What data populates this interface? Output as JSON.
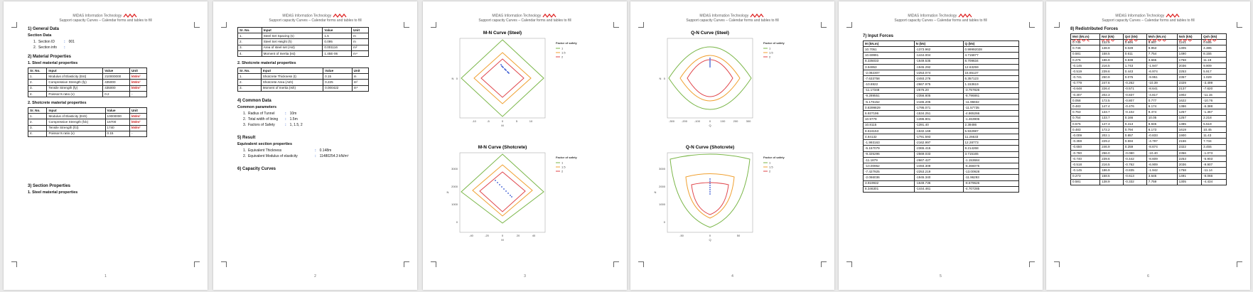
{
  "header": {
    "line1": "MIDAS Information Technology",
    "line2": "Support capacity Curves – Calendar forms and tables to fill"
  },
  "pages": [
    {
      "number": "1",
      "sections": {
        "general_title": "1) General Data",
        "section_data_title": "Section Data",
        "section_data": [
          {
            "label": "Section ID",
            "value": "001"
          },
          {
            "label": "Section info",
            "value": ""
          }
        ],
        "material_title": "2) Material Properties",
        "steel_title": "1. Steel material properties",
        "shotcrete_title": "2. Shotcrete material properties",
        "section_props_title": "3) Section Properties",
        "steel_section_title": "1. Steel material properties"
      },
      "columns": [
        "Sr. No.",
        "Input",
        "Value",
        "Unit"
      ],
      "steel_rows": [
        [
          "1.",
          "Modulus of Elasticity (Est)",
          "210000000",
          "kN/m²"
        ],
        [
          "2.",
          "Compressive Strength (fy)",
          "435000",
          "kN/m²"
        ],
        [
          "3.",
          "Tensile Strength (fy)",
          "435000",
          "kN/m²"
        ],
        [
          "4.",
          "Poisson's ratio (v)",
          "0.2",
          "-"
        ]
      ],
      "shotcrete_rows": [
        [
          "1.",
          "Modulus of Elasticity (Esh)",
          "10000000",
          "kN/m²"
        ],
        [
          "2.",
          "Compressive Strength (fck)",
          "16700",
          "kN/m²"
        ],
        [
          "3.",
          "Tensile Strength (fct)",
          "1740",
          "kN/m²"
        ],
        [
          "4.",
          "Poisson's ratio (v)",
          "0.15",
          "-"
        ]
      ]
    },
    {
      "number": "2",
      "columns": [
        "Sr. No.",
        "Input",
        "Value",
        "Unit"
      ],
      "steel_rows": [
        [
          "1.",
          "Steel Set Spacing (s)",
          "1.5",
          "m"
        ],
        [
          "2.",
          "Steel Set Height (h)",
          "0.095",
          "m"
        ],
        [
          "3.",
          "Area of steel set (Ast)",
          "0.001116",
          "m²"
        ],
        [
          "4.",
          "Moment of Inertia (Ist)",
          "1.45E-06",
          "m⁴"
        ]
      ],
      "shotcrete_title": "2. Shotcrete material properties",
      "shotcrete_rows": [
        [
          "1.",
          "Shotcrete Thickness (t)",
          "0.15",
          "m"
        ],
        [
          "2.",
          "Shotcrete Area (Ash)",
          "0.225",
          "m²"
        ],
        [
          "3.",
          "Moment of Inertia (Ish)",
          "0.000422",
          "m⁴"
        ]
      ],
      "common_title": "4) Common Data",
      "common_sub": "Common parameters",
      "common_items": [
        {
          "label": "Radius of Tunnel",
          "value": "10m"
        },
        {
          "label": "Total width of lining",
          "value": "1.5m"
        },
        {
          "label": "Factors of Safety",
          "value": "1, 1.5, 2"
        }
      ],
      "result_title": "5) Result",
      "result_sub": "Equivalent section properties",
      "result_items": [
        {
          "label": "Equivalent Thickness",
          "value": "0.148m"
        },
        {
          "label": "Equivalent Modulus of elasticity",
          "value": "11480254.3 kN/m²"
        }
      ],
      "capacity_title": "6) Capacity Curves"
    },
    {
      "number": "3",
      "chart_titles": [
        "M-N Curve (Steel)",
        "M-N Curve (Shotcrete)"
      ]
    },
    {
      "number": "4",
      "chart_titles": [
        "Q-N Curve (Steel)",
        "Q-N Curve (Shotcrete)"
      ]
    },
    {
      "number": "5",
      "title": "7) Input Forces",
      "columns": [
        "M (kN.m)",
        "N (kN)",
        "Q (kN)"
      ],
      "rows": [
        [
          "10.7051",
          "-1373.962",
          "0.99992028"
        ],
        [
          "10.69991",
          "-1444.004",
          "4.715877"
        ],
        [
          "8.335033",
          "-1649.535",
          "8.709634"
        ],
        [
          "3.94953",
          "-1945.292",
          "12.63259"
        ],
        [
          "-2.082307",
          "-2253.074",
          "15.65137"
        ],
        [
          "-7.633758",
          "-2493.276",
          "6.357123"
        ],
        [
          "-10.6922",
          "-2667.975",
          "1.153619"
        ],
        [
          "-11.17348",
          "-2576.20",
          "-3.757826"
        ],
        [
          "-9.289551",
          "-2356.805",
          "-8.796861"
        ],
        [
          "-5.176152",
          "-2165.205",
          "-11.96832"
        ],
        [
          "0.8399829",
          "-1795.071",
          "-11.57735"
        ],
        [
          "6.937196",
          "-1534.251",
          "-4.865266"
        ],
        [
          "10.9779",
          "-1396.901",
          "-1.463906"
        ],
        [
          "10.8115",
          "-1391.40",
          "2.39486"
        ],
        [
          "8.616153",
          "-1532.169",
          "5.932987"
        ],
        [
          "4.84132",
          "-1791.593",
          "11.26633"
        ],
        [
          "-1.993163",
          "-2162.997",
          "12.28773"
        ],
        [
          "-5.157079",
          "-2365.415",
          "8.214268"
        ],
        [
          "-9.325296",
          "-2569.033",
          "3.715165"
        ],
        [
          "-11.1879",
          "-2667.427",
          "-1.153684"
        ],
        [
          "-10.00962",
          "-2493.309",
          "-6.366075"
        ],
        [
          "-7.427925",
          "-2253.219",
          "-13.00928"
        ],
        [
          "-2.066036",
          "-1945.340",
          "-11.96293"
        ],
        [
          "3.919932",
          "-1649.736",
          "-8.679626"
        ],
        [
          "8.346301",
          "-1444.461",
          "-4.707285"
        ]
      ]
    },
    {
      "number": "6",
      "title": "8) Redistributed Forces",
      "columns": [
        "Mst (kN.m)",
        "Nst (kN)",
        "Qst (kN)",
        "Msh (kN.m)",
        "Nsh (kN)",
        "Qsh (kN)"
      ],
      "rows": [
        [
          "0.749",
          "132.9",
          "0.994",
          "9.957",
          "1241",
          "0.555"
        ],
        [
          "0.746",
          "138.9",
          "0.029",
          "9.953",
          "1305",
          "4.385"
        ],
        [
          "0.581",
          "158.5",
          "0.611",
          "7.754",
          "1490",
          "8.155"
        ],
        [
          "0.275",
          "186.9",
          "0.839",
          "3.665",
          "1758",
          "11.19"
        ],
        [
          "-0.145",
          "216.5",
          "1.743",
          "-1.947",
          "2036",
          "9.909"
        ],
        [
          "-0.519",
          "239.6",
          "0.443",
          "-6.974",
          "2253",
          "5.917"
        ],
        [
          "-0.741",
          "250.9",
          "0.075",
          "-9.951",
          "2357",
          "1.029"
        ],
        [
          "-0.779",
          "247.6",
          "-0.262",
          "-10.39",
          "2329",
          "-3.499"
        ],
        [
          "-0.648",
          "226.4",
          "-0.571",
          "-8.641",
          "2137",
          "-7.620"
        ],
        [
          "-0.307",
          "202.3",
          "-0.837",
          "-4.817",
          "1902",
          "-11.15"
        ],
        [
          "0.058",
          "172.5",
          "-0.807",
          "0.777",
          "1622",
          "-10.76"
        ],
        [
          "0.483",
          "147.4",
          "-0.476",
          "6.174",
          "1386",
          "-6.388"
        ],
        [
          "0.763",
          "133.7",
          "-0.102",
          "9.474",
          "1257",
          "-1.367"
        ],
        [
          "0.754",
          "133.7",
          "0.166",
          "10.05",
          "1257",
          "2.218"
        ],
        [
          "0.575",
          "147.3",
          "0.413",
          "8.945",
          "1385",
          "5.519"
        ],
        [
          "0.483",
          "172.2",
          "0.794",
          "6.173",
          "1619",
          "10.45"
        ],
        [
          "-0.009",
          "202.1",
          "0.857",
          "-0.833",
          "1900",
          "11.43"
        ],
        [
          "-0.359",
          "229.2",
          "0.594",
          "-4.797",
          "2156",
          "7.734"
        ],
        [
          "-0.650",
          "246.9",
          "0.259",
          "-8.674",
          "2322",
          "3.455"
        ],
        [
          "-0.780",
          "256.0",
          "-0.080",
          "-10.40",
          "2356",
          "-1.073"
        ],
        [
          "-0.740",
          "239.6",
          "-0.442",
          "-8.609",
          "2253",
          "-5.903"
        ],
        [
          "-0.518",
          "216.5",
          "-0.762",
          "-6.909",
          "2036",
          "-9.907"
        ],
        [
          "-0.145",
          "186.9",
          "-0.835",
          "-1.942",
          "1758",
          "-11.14"
        ],
        [
          "0.273",
          "158.5",
          "-0.613",
          "3.645",
          "1491",
          "-8.066"
        ],
        [
          "0.581",
          "138.9",
          "-0.332",
          "7.759",
          "1305",
          "-4.434"
        ]
      ]
    }
  ],
  "charts": {
    "legend_title": "Factor of safety",
    "legend_items": [
      "1",
      "1.5",
      "2"
    ],
    "colors": {
      "fs1": "#7ab648",
      "fs15": "#f0a030",
      "fs2": "#e0454a",
      "points": "#2c4fcf"
    }
  },
  "chart_data": [
    {
      "type": "line",
      "title": "M-N Curve (Steel)",
      "xlabel": "M",
      "ylabel": "N",
      "xlim": [
        -15,
        15
      ],
      "xticks": [
        "-10",
        "-5",
        "0",
        "5",
        "10"
      ],
      "yticks": [
        "0"
      ],
      "series": [
        {
          "name": "1"
        },
        {
          "name": "1.5"
        },
        {
          "name": "2"
        }
      ],
      "legend": "right"
    },
    {
      "type": "line",
      "title": "Q-N Curve (Steel)",
      "xlabel": "Q",
      "ylabel": "N",
      "xlim": [
        -300,
        300
      ],
      "xticks": [
        "-300",
        "-200",
        "-100",
        "0",
        "100",
        "200",
        "300"
      ],
      "yticks": [
        "0"
      ],
      "series": [
        {
          "name": "1"
        },
        {
          "name": "1.5"
        },
        {
          "name": "2"
        }
      ],
      "legend": "right"
    },
    {
      "type": "line",
      "title": "M-N Curve (Shotcrete)",
      "xlabel": "M",
      "ylabel": "N",
      "xlim": [
        -50,
        50
      ],
      "ylim": [
        -500,
        3000
      ],
      "xticks": [
        "-40",
        "-20",
        "0",
        "20",
        "40"
      ],
      "yticks": [
        "0",
        "1000",
        "2000",
        "3000"
      ],
      "series": [
        {
          "name": "1"
        },
        {
          "name": "1.5"
        },
        {
          "name": "2"
        }
      ],
      "legend": "right"
    },
    {
      "type": "line",
      "title": "Q-N Curve (Shotcrete)",
      "xlabel": "Q",
      "ylabel": "N",
      "xlim": [
        -80,
        80
      ],
      "ylim": [
        -500,
        3000
      ],
      "xticks": [
        "-50",
        "0",
        "50"
      ],
      "yticks": [
        "0",
        "1000",
        "2000",
        "3000"
      ],
      "series": [
        {
          "name": "1"
        },
        {
          "name": "1.5"
        },
        {
          "name": "2"
        }
      ],
      "legend": "right"
    }
  ]
}
